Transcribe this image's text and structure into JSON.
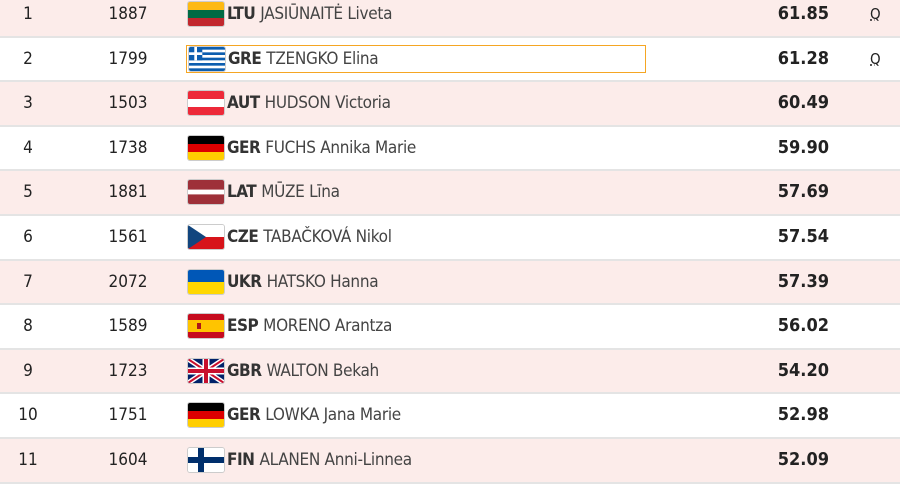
{
  "rows": [
    {
      "rank": "1",
      "bib": "1887",
      "nat": "LTU",
      "name": "JASIŪNAITĖ Liveta",
      "mark": "61.85",
      "q": "Q",
      "flag": "lithuania-flag-icon"
    },
    {
      "rank": "2",
      "bib": "1799",
      "nat": "GRE",
      "name": "TZENGKO Elina",
      "mark": "61.28",
      "q": "Q",
      "flag": "greece-flag-icon",
      "selected": true
    },
    {
      "rank": "3",
      "bib": "1503",
      "nat": "AUT",
      "name": "HUDSON Victoria",
      "mark": "60.49",
      "q": "",
      "flag": "austria-flag-icon"
    },
    {
      "rank": "4",
      "bib": "1738",
      "nat": "GER",
      "name": "FUCHS Annika Marie",
      "mark": "59.90",
      "q": "",
      "flag": "germany-flag-icon"
    },
    {
      "rank": "5",
      "bib": "1881",
      "nat": "LAT",
      "name": "MŪZE Līna",
      "mark": "57.69",
      "q": "",
      "flag": "latvia-flag-icon"
    },
    {
      "rank": "6",
      "bib": "1561",
      "nat": "CZE",
      "name": "TABAČKOVÁ Nikol",
      "mark": "57.54",
      "q": "",
      "flag": "czechia-flag-icon"
    },
    {
      "rank": "7",
      "bib": "2072",
      "nat": "UKR",
      "name": "HATSKO Hanna",
      "mark": "57.39",
      "q": "",
      "flag": "ukraine-flag-icon"
    },
    {
      "rank": "8",
      "bib": "1589",
      "nat": "ESP",
      "name": "MORENO Arantza",
      "mark": "56.02",
      "q": "",
      "flag": "spain-flag-icon"
    },
    {
      "rank": "9",
      "bib": "1723",
      "nat": "GBR",
      "name": "WALTON Bekah",
      "mark": "54.20",
      "q": "",
      "flag": "uk-flag-icon"
    },
    {
      "rank": "10",
      "bib": "1751",
      "nat": "GER",
      "name": "LOWKA Jana Marie",
      "mark": "52.98",
      "q": "",
      "flag": "germany-flag-icon"
    },
    {
      "rank": "11",
      "bib": "1604",
      "nat": "FIN",
      "name": "ALANEN Anni-Linnea",
      "mark": "52.09",
      "q": "",
      "flag": "finland-flag-icon"
    }
  ],
  "colors": {
    "odd_row": "#fcecea",
    "even_row": "#ffffff",
    "selection": "#f5a623"
  }
}
